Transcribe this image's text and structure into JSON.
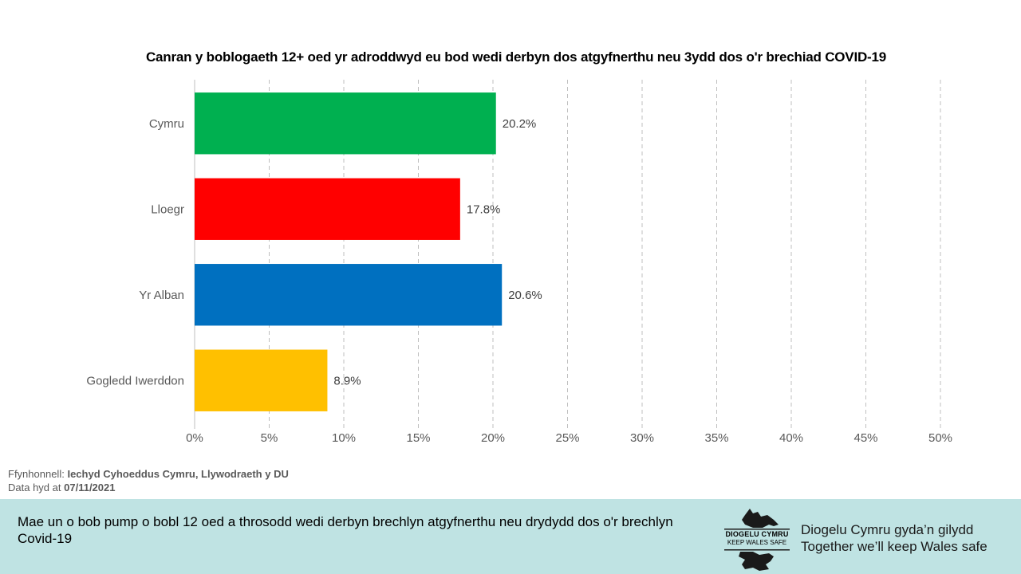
{
  "chart_data": {
    "type": "bar",
    "orientation": "horizontal",
    "title": "Canran y boblogaeth 12+ oed yr adroddwyd eu bod wedi derbyn dos atgyfnerthu neu 3ydd dos o'r brechiad COVID-19",
    "categories": [
      "Cymru",
      "Lloegr",
      "Yr Alban",
      "Gogledd Iwerddon"
    ],
    "values": [
      20.2,
      17.8,
      20.6,
      8.9
    ],
    "value_labels": [
      "20.2%",
      "17.8%",
      "20.6%",
      "8.9%"
    ],
    "colors": [
      "#00b050",
      "#ff0000",
      "#0070c0",
      "#ffc000"
    ],
    "xlim": [
      0,
      50
    ],
    "x_ticks": [
      0,
      5,
      10,
      15,
      20,
      25,
      30,
      35,
      40,
      45,
      50
    ],
    "x_tick_labels": [
      "0%",
      "5%",
      "10%",
      "15%",
      "20%",
      "25%",
      "30%",
      "35%",
      "40%",
      "45%",
      "50%"
    ],
    "grid": "vertical-dashed",
    "legend": "none"
  },
  "source": {
    "label": "Ffynhonnell:",
    "value": "Iechyd Cyhoeddus Cymru, Llywodraeth y DU",
    "date_label": "Data hyd at",
    "date_value": "07/11/2021"
  },
  "footer": {
    "message": "Mae un o bob pump o bobl 12 oed a throsodd wedi derbyn brechlyn atgyfnerthu neu drydydd dos o'r brechlyn Covid-19",
    "logo_line1": "DIOGELU CYMRU",
    "logo_line2": "KEEP WALES SAFE",
    "tagline_cy": "Diogelu Cymru gyda’n gilydd",
    "tagline_en": "Together we’ll keep Wales safe",
    "background": "#bfe3e3"
  }
}
